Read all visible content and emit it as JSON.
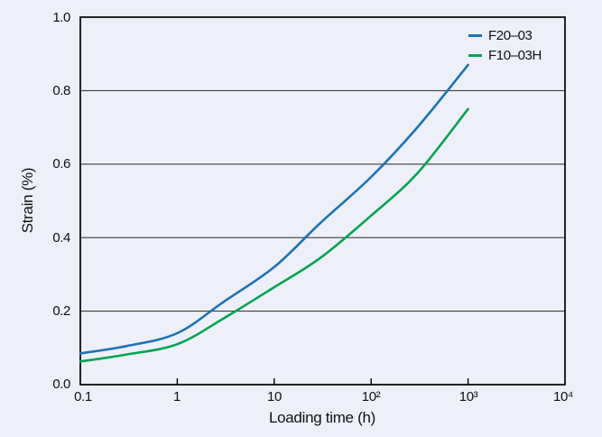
{
  "chart_data": {
    "type": "line",
    "title": "",
    "xlabel": "Loading time (h)",
    "ylabel": "Strain (%)",
    "x_scale": "log",
    "y_scale": "linear",
    "xlim": [
      0.1,
      10000
    ],
    "ylim": [
      0.0,
      1.0
    ],
    "x_tick_values": [
      0.1,
      1,
      10,
      100,
      1000,
      10000
    ],
    "x_tick_labels": [
      "0.1",
      "1",
      "10",
      "10²",
      "10³",
      "10⁴"
    ],
    "x_tick_marks": [
      1,
      10,
      100,
      1000
    ],
    "y_tick_values": [
      1.0,
      0.8,
      0.6,
      0.4,
      0.2,
      0.0
    ],
    "y_tick_labels": [
      "1.0",
      "0.8",
      "0.6",
      "0.4",
      "0.2",
      "0.0"
    ],
    "y_gridlines": [
      0.2,
      0.4,
      0.6,
      0.8
    ],
    "grid": "horizontal",
    "legend_position": "top-right",
    "series": [
      {
        "name": "F20–03",
        "color": "#1a73b8",
        "x": [
          0.1,
          0.3,
          1,
          3,
          10,
          30,
          100,
          300,
          1000
        ],
        "y": [
          0.085,
          0.105,
          0.14,
          0.225,
          0.32,
          0.44,
          0.565,
          0.7,
          0.87
        ]
      },
      {
        "name": "F10–03H",
        "color": "#00a551",
        "x": [
          0.1,
          0.3,
          1,
          3,
          10,
          30,
          100,
          300,
          1000
        ],
        "y": [
          0.063,
          0.082,
          0.11,
          0.18,
          0.265,
          0.345,
          0.46,
          0.575,
          0.75
        ]
      }
    ],
    "style": {
      "background": "#edf0f8",
      "grid_color": "#3d3d3d",
      "axis_color": "#000000",
      "text_color": "#111111"
    }
  }
}
